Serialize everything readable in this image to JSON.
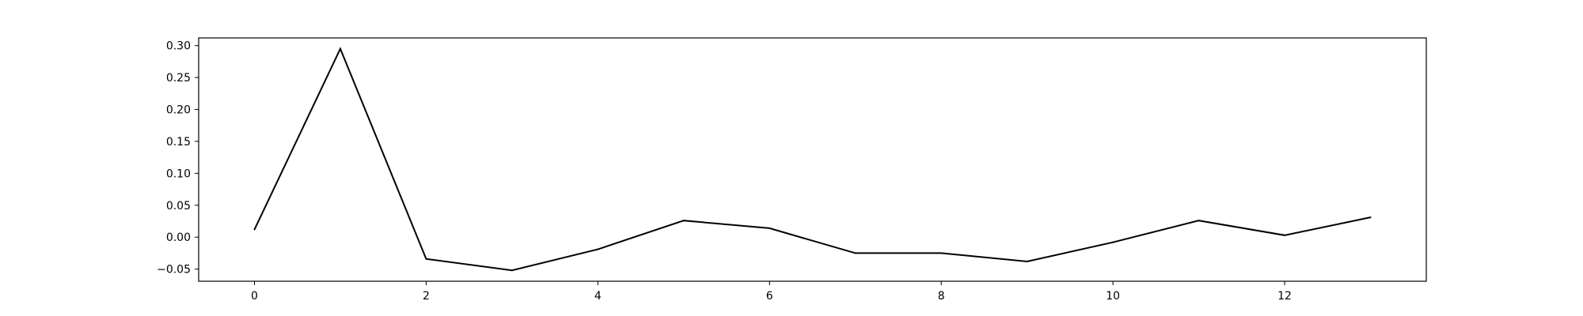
{
  "chart_data": {
    "type": "line",
    "title": "",
    "xlabel": "",
    "ylabel": "",
    "x": [
      0,
      1,
      2,
      3,
      4,
      5,
      6,
      7,
      8,
      9,
      10,
      11,
      12,
      13
    ],
    "series": [
      {
        "values": [
          0.012,
          0.295,
          -0.034,
          -0.052,
          -0.019,
          0.026,
          0.014,
          -0.025,
          -0.025,
          -0.038,
          -0.008,
          0.026,
          0.003,
          0.031
        ],
        "color": "#000000"
      }
    ],
    "xlim": [
      -0.65,
      13.65
    ],
    "ylim": [
      -0.069,
      0.312
    ],
    "xticks": [
      0,
      2,
      4,
      6,
      8,
      10,
      12
    ],
    "xtick_labels": [
      "0",
      "2",
      "4",
      "6",
      "8",
      "10",
      "12"
    ],
    "yticks": [
      -0.05,
      0.0,
      0.05,
      0.1,
      0.15,
      0.2,
      0.25,
      0.3
    ],
    "ytick_labels": [
      "−0.05",
      "0.00",
      "0.05",
      "0.10",
      "0.15",
      "0.20",
      "0.25",
      "0.30"
    ],
    "grid": false,
    "legend": "none"
  }
}
